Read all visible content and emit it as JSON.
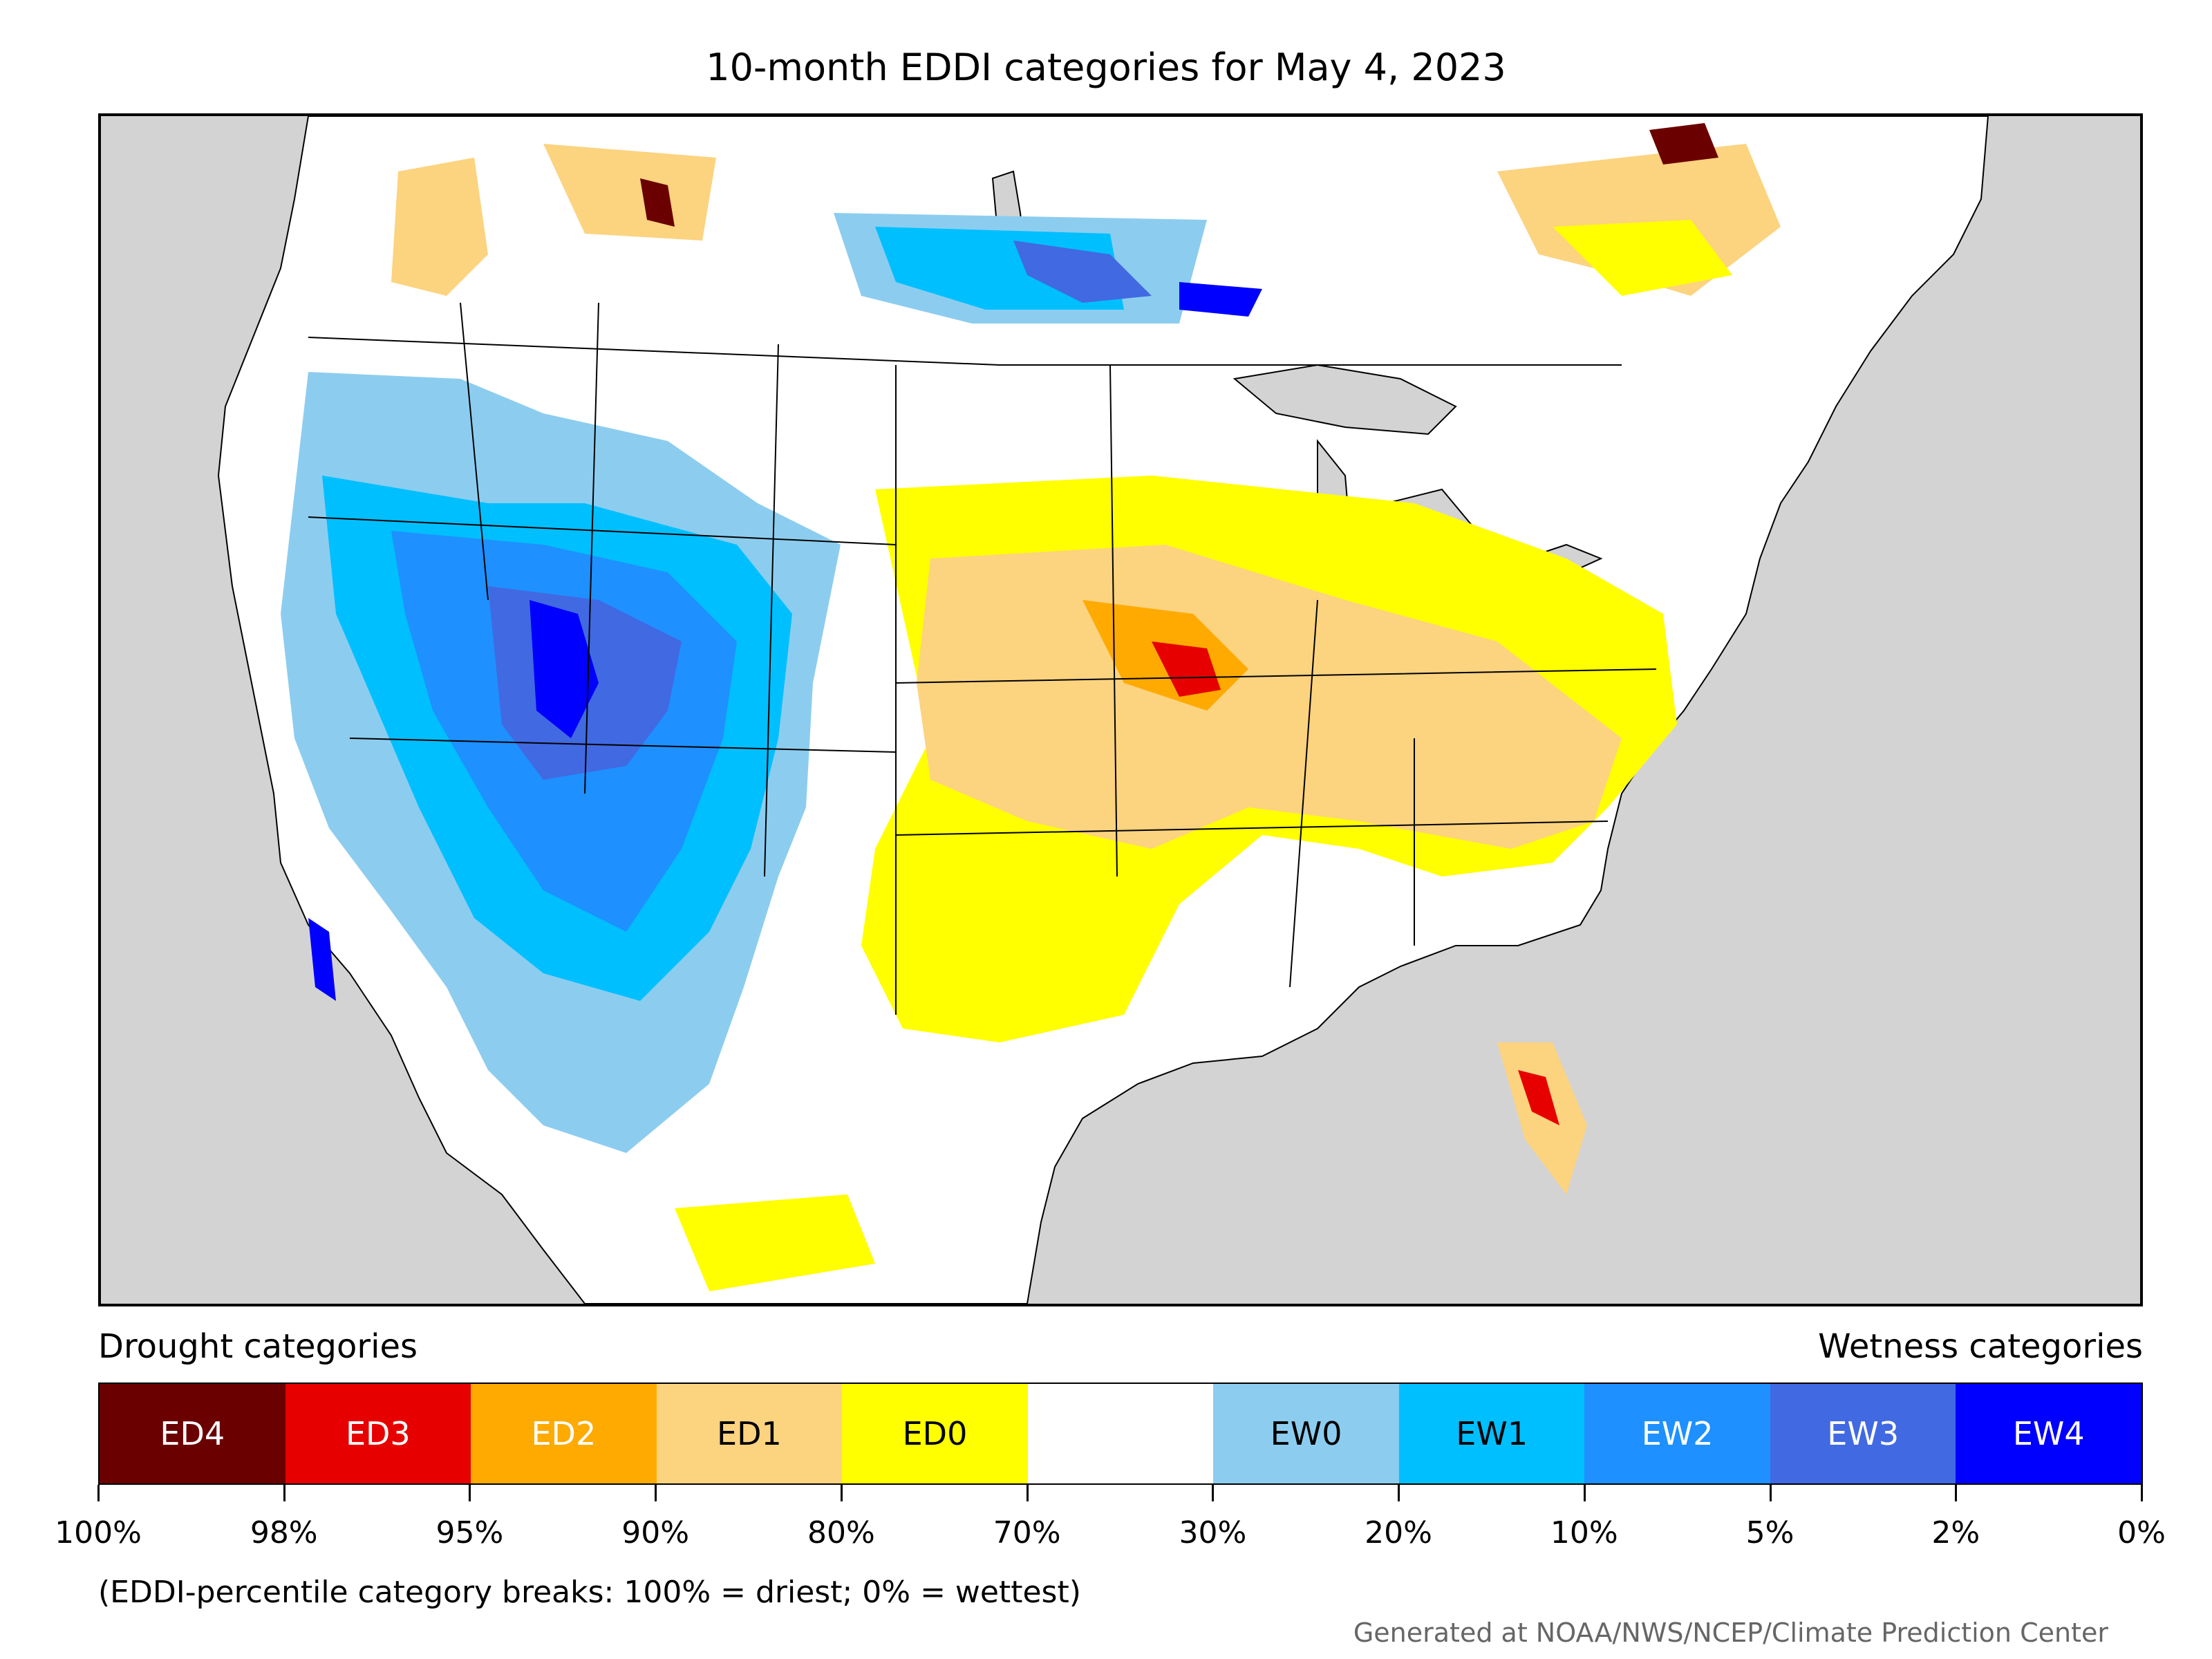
{
  "title": "10-month EDDI categories for May 4, 2023",
  "legend": {
    "drought_heading": "Drought categories",
    "wetness_heading": "Wetness categories",
    "categories": [
      {
        "label": "ED4",
        "color": "#6b0000",
        "text_color": "#ffffff"
      },
      {
        "label": "ED3",
        "color": "#e60000",
        "text_color": "#ffffff"
      },
      {
        "label": "ED2",
        "color": "#ffaa00",
        "text_color": "#ffffff"
      },
      {
        "label": "ED1",
        "color": "#fcd37f",
        "text_color": "#000000"
      },
      {
        "label": "ED0",
        "color": "#ffff00",
        "text_color": "#000000"
      },
      {
        "label": "",
        "color": "#ffffff",
        "text_color": "#000000"
      },
      {
        "label": "EW0",
        "color": "#8ccdef",
        "text_color": "#000000"
      },
      {
        "label": "EW1",
        "color": "#00bfff",
        "text_color": "#000000"
      },
      {
        "label": "EW2",
        "color": "#1e90ff",
        "text_color": "#ffffff"
      },
      {
        "label": "EW3",
        "color": "#4169e1",
        "text_color": "#ffffff"
      },
      {
        "label": "EW4",
        "color": "#0000ff",
        "text_color": "#ffffff"
      }
    ],
    "breaks": [
      "100%",
      "98%",
      "95%",
      "90%",
      "80%",
      "70%",
      "30%",
      "20%",
      "10%",
      "5%",
      "2%",
      "0%"
    ],
    "note": "(EDDI-percentile category breaks: 100% = driest; 0% = wettest)"
  },
  "credit": "Generated at NOAA/NWS/NCEP/Climate Prediction Center",
  "map": {
    "background_color": "#d3d3d3",
    "land_color": "#ffffff",
    "water_color": "#d3d3d3",
    "region": "Contiguous United States with southern Canada and northern Mexico"
  }
}
